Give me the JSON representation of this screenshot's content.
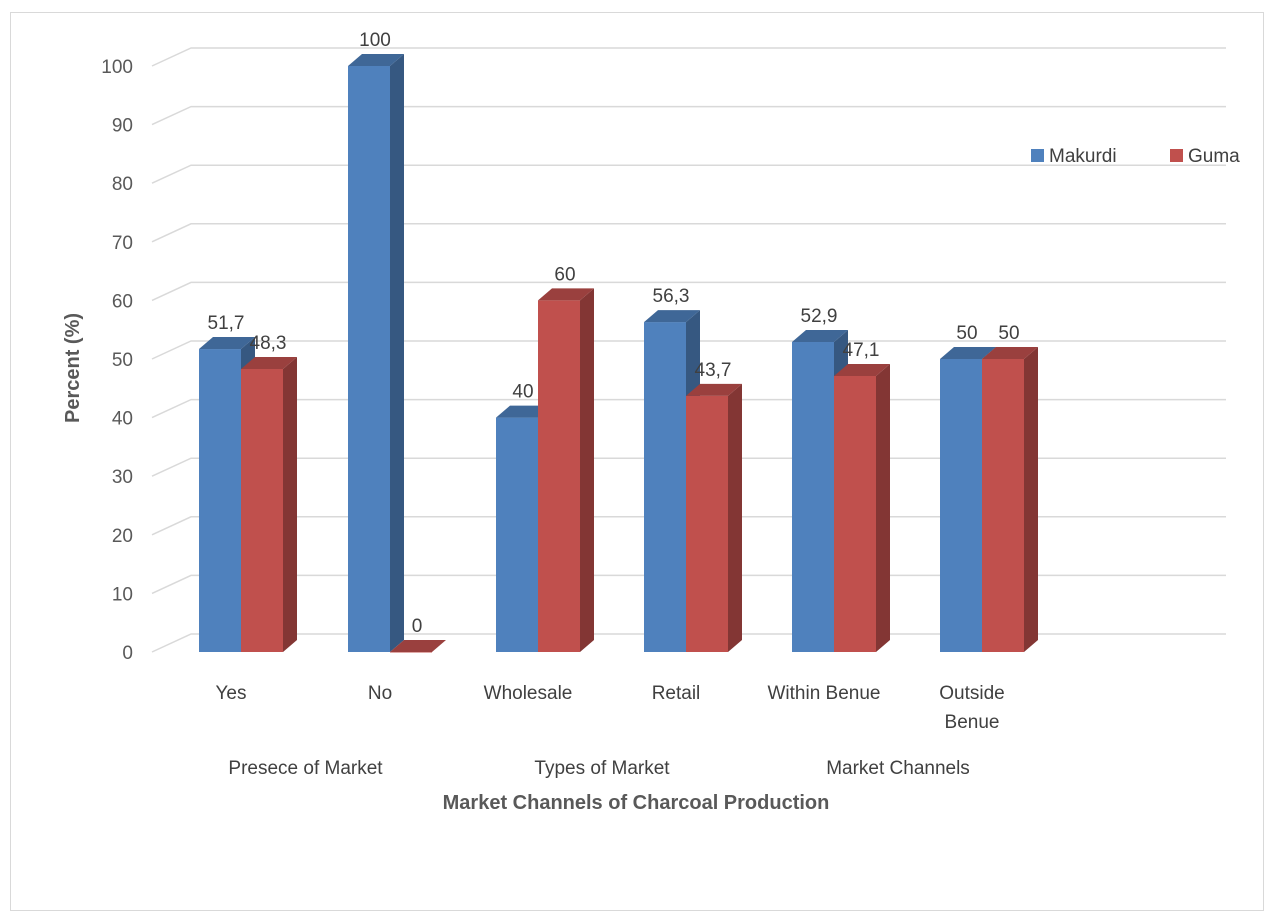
{
  "chart_data": {
    "type": "bar",
    "style": "3d-clustered-column",
    "categories": [
      "Yes",
      "No",
      "Wholesale",
      "Retail",
      "Within Benue",
      "Outside Benue"
    ],
    "category_lines": [
      [
        "Yes"
      ],
      [
        "No"
      ],
      [
        "Wholesale"
      ],
      [
        "Retail"
      ],
      [
        "Within Benue"
      ],
      [
        "Outside",
        "Benue"
      ]
    ],
    "groups": [
      {
        "label": "Presece of Market",
        "categories": [
          "Yes",
          "No"
        ]
      },
      {
        "label": "Types of Market",
        "categories": [
          "Wholesale",
          "Retail"
        ]
      },
      {
        "label": "Market Channels",
        "categories": [
          "Within Benue",
          "Outside Benue"
        ]
      }
    ],
    "series": [
      {
        "name": "Makurdi",
        "color": "#4F81BD",
        "values": [
          51.7,
          100,
          40,
          56.3,
          52.9,
          50
        ],
        "labels": [
          "51,7",
          "100",
          "40",
          "56,3",
          "52,9",
          "50"
        ]
      },
      {
        "name": "Guma",
        "color": "#C0504D",
        "values": [
          48.3,
          0,
          60,
          43.7,
          47.1,
          50
        ],
        "labels": [
          "48,3",
          "0",
          "60",
          "43,7",
          "47,1",
          "50"
        ]
      }
    ],
    "xlabel": "Market Channels of Charcoal Production",
    "ylabel": "Percent (%)",
    "ylim": [
      0,
      100
    ],
    "yticks": [
      0,
      10,
      20,
      30,
      40,
      50,
      60,
      70,
      80,
      90,
      100
    ],
    "grid": true,
    "legend_position": "right"
  }
}
